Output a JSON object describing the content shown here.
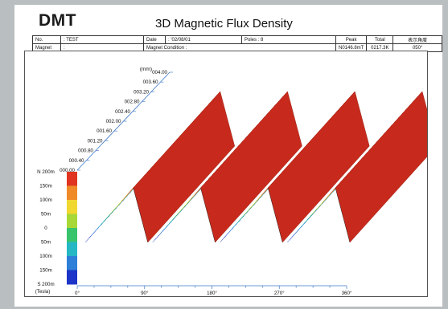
{
  "header": {
    "logo": "DMT",
    "title": "3D Magnetic Flux Density"
  },
  "info_table": {
    "row1": {
      "no_label": "No.",
      "no_value": ": TEST",
      "date_label": "Date",
      "date_value": ": '02/08/01",
      "poles": "Poles : 8",
      "peak_label": "Peak",
      "total_label": "Total",
      "angle_label": "表示角度"
    },
    "row2": {
      "magnet_label": "Magnet",
      "magnet_value": ":",
      "condition": "Magnet Condition :",
      "peak_value": "N0146.8mT",
      "total_value": "0217.3K",
      "angle_value": "050°"
    }
  },
  "chart_data": {
    "type": "surface",
    "y_unit": "(mm)",
    "y_ticks": [
      "000.00",
      "000.40",
      "000.80",
      "001.20",
      "001.60",
      "002.00",
      "002.40",
      "002.80",
      "003.20",
      "003.60",
      "004.00"
    ],
    "z_ticks": [
      "N 200m",
      "150m",
      "100m",
      "50m",
      "0",
      "50m",
      "100m",
      "150m",
      "S 200m"
    ],
    "z_unit": "(Tesla)",
    "x_ticks": [
      "0°",
      "90°",
      "180°",
      "270°",
      "360°"
    ],
    "poles": 8,
    "z_range": [
      -200,
      200
    ],
    "palette": [
      "#1c34c8",
      "#2d7fd8",
      "#25b8c4",
      "#38c46c",
      "#a8d838",
      "#f0d830",
      "#f08a28",
      "#e03420"
    ]
  }
}
